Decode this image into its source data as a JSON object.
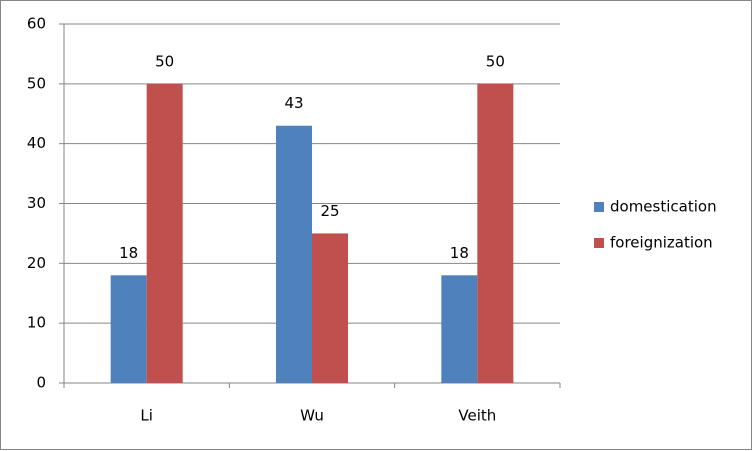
{
  "chart_data": {
    "type": "bar",
    "categories": [
      "Li",
      "Wu",
      "Veith"
    ],
    "series": [
      {
        "name": "domestication",
        "color": "#4f81bd",
        "values": [
          18,
          43,
          18
        ]
      },
      {
        "name": "foreignization",
        "color": "#c0504d",
        "values": [
          50,
          25,
          50
        ]
      }
    ],
    "ylim": [
      0,
      60
    ],
    "yticks": [
      0,
      10,
      20,
      30,
      40,
      50,
      60
    ],
    "grid": true,
    "legend": "right",
    "data_labels": true
  }
}
